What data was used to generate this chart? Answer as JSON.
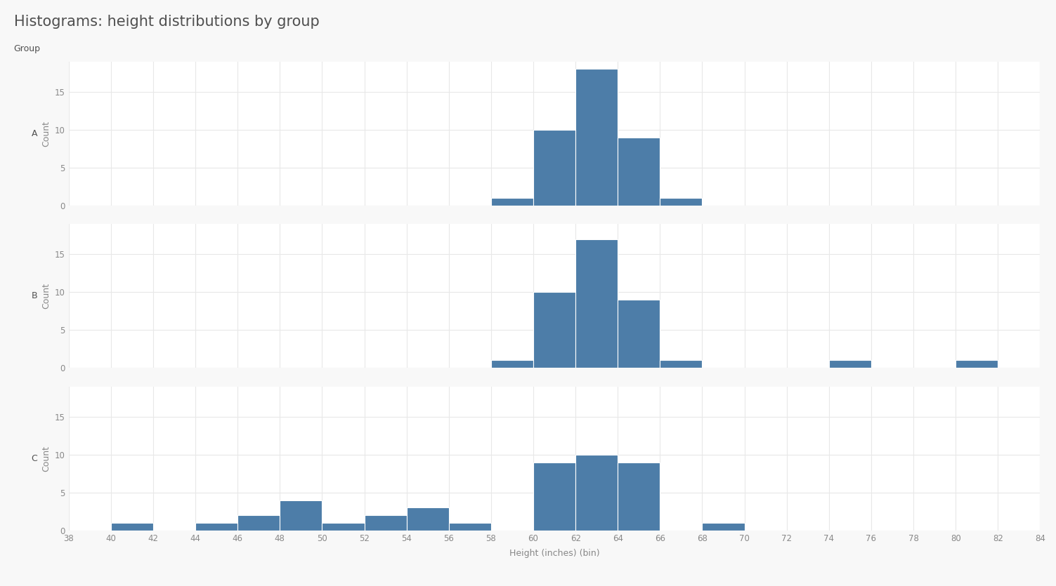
{
  "title": "Histograms: height distributions by group",
  "xlabel": "Height (inches) (bin)",
  "ylabel": "Count",
  "group_label": "Group",
  "groups": [
    "A",
    "B",
    "C"
  ],
  "bar_color": "#4d7da8",
  "bar_edgecolor": "#ffffff",
  "bin_edges": [
    38,
    40,
    42,
    44,
    46,
    48,
    50,
    52,
    54,
    56,
    58,
    60,
    62,
    64,
    66,
    68,
    70,
    72,
    74,
    76,
    78,
    80,
    82,
    84
  ],
  "counts_A": [
    0,
    0,
    0,
    0,
    0,
    0,
    0,
    0,
    0,
    0,
    1,
    10,
    18,
    9,
    1,
    0,
    0,
    0,
    0,
    0,
    0,
    0,
    0
  ],
  "counts_B": [
    0,
    0,
    0,
    0,
    0,
    0,
    0,
    0,
    0,
    0,
    1,
    10,
    17,
    9,
    1,
    0,
    0,
    0,
    1,
    0,
    0,
    1,
    0
  ],
  "counts_C": [
    0,
    1,
    0,
    1,
    2,
    4,
    1,
    2,
    3,
    1,
    0,
    9,
    10,
    9,
    0,
    1,
    0,
    0,
    0,
    0,
    0,
    0,
    0
  ],
  "ylim_top": 19,
  "yticks": [
    0,
    5,
    10,
    15
  ],
  "xticks": [
    38,
    40,
    42,
    44,
    46,
    48,
    50,
    52,
    54,
    56,
    58,
    60,
    62,
    64,
    66,
    68,
    70,
    72,
    74,
    76,
    78,
    80,
    82,
    84
  ],
  "background_color": "#f8f8f8",
  "plot_bg_color": "#ffffff",
  "title_fontsize": 15,
  "label_fontsize": 9,
  "tick_fontsize": 8.5,
  "group_label_fontsize": 9,
  "title_color": "#505050",
  "tick_color": "#888888",
  "grid_color": "#e8e8e8"
}
